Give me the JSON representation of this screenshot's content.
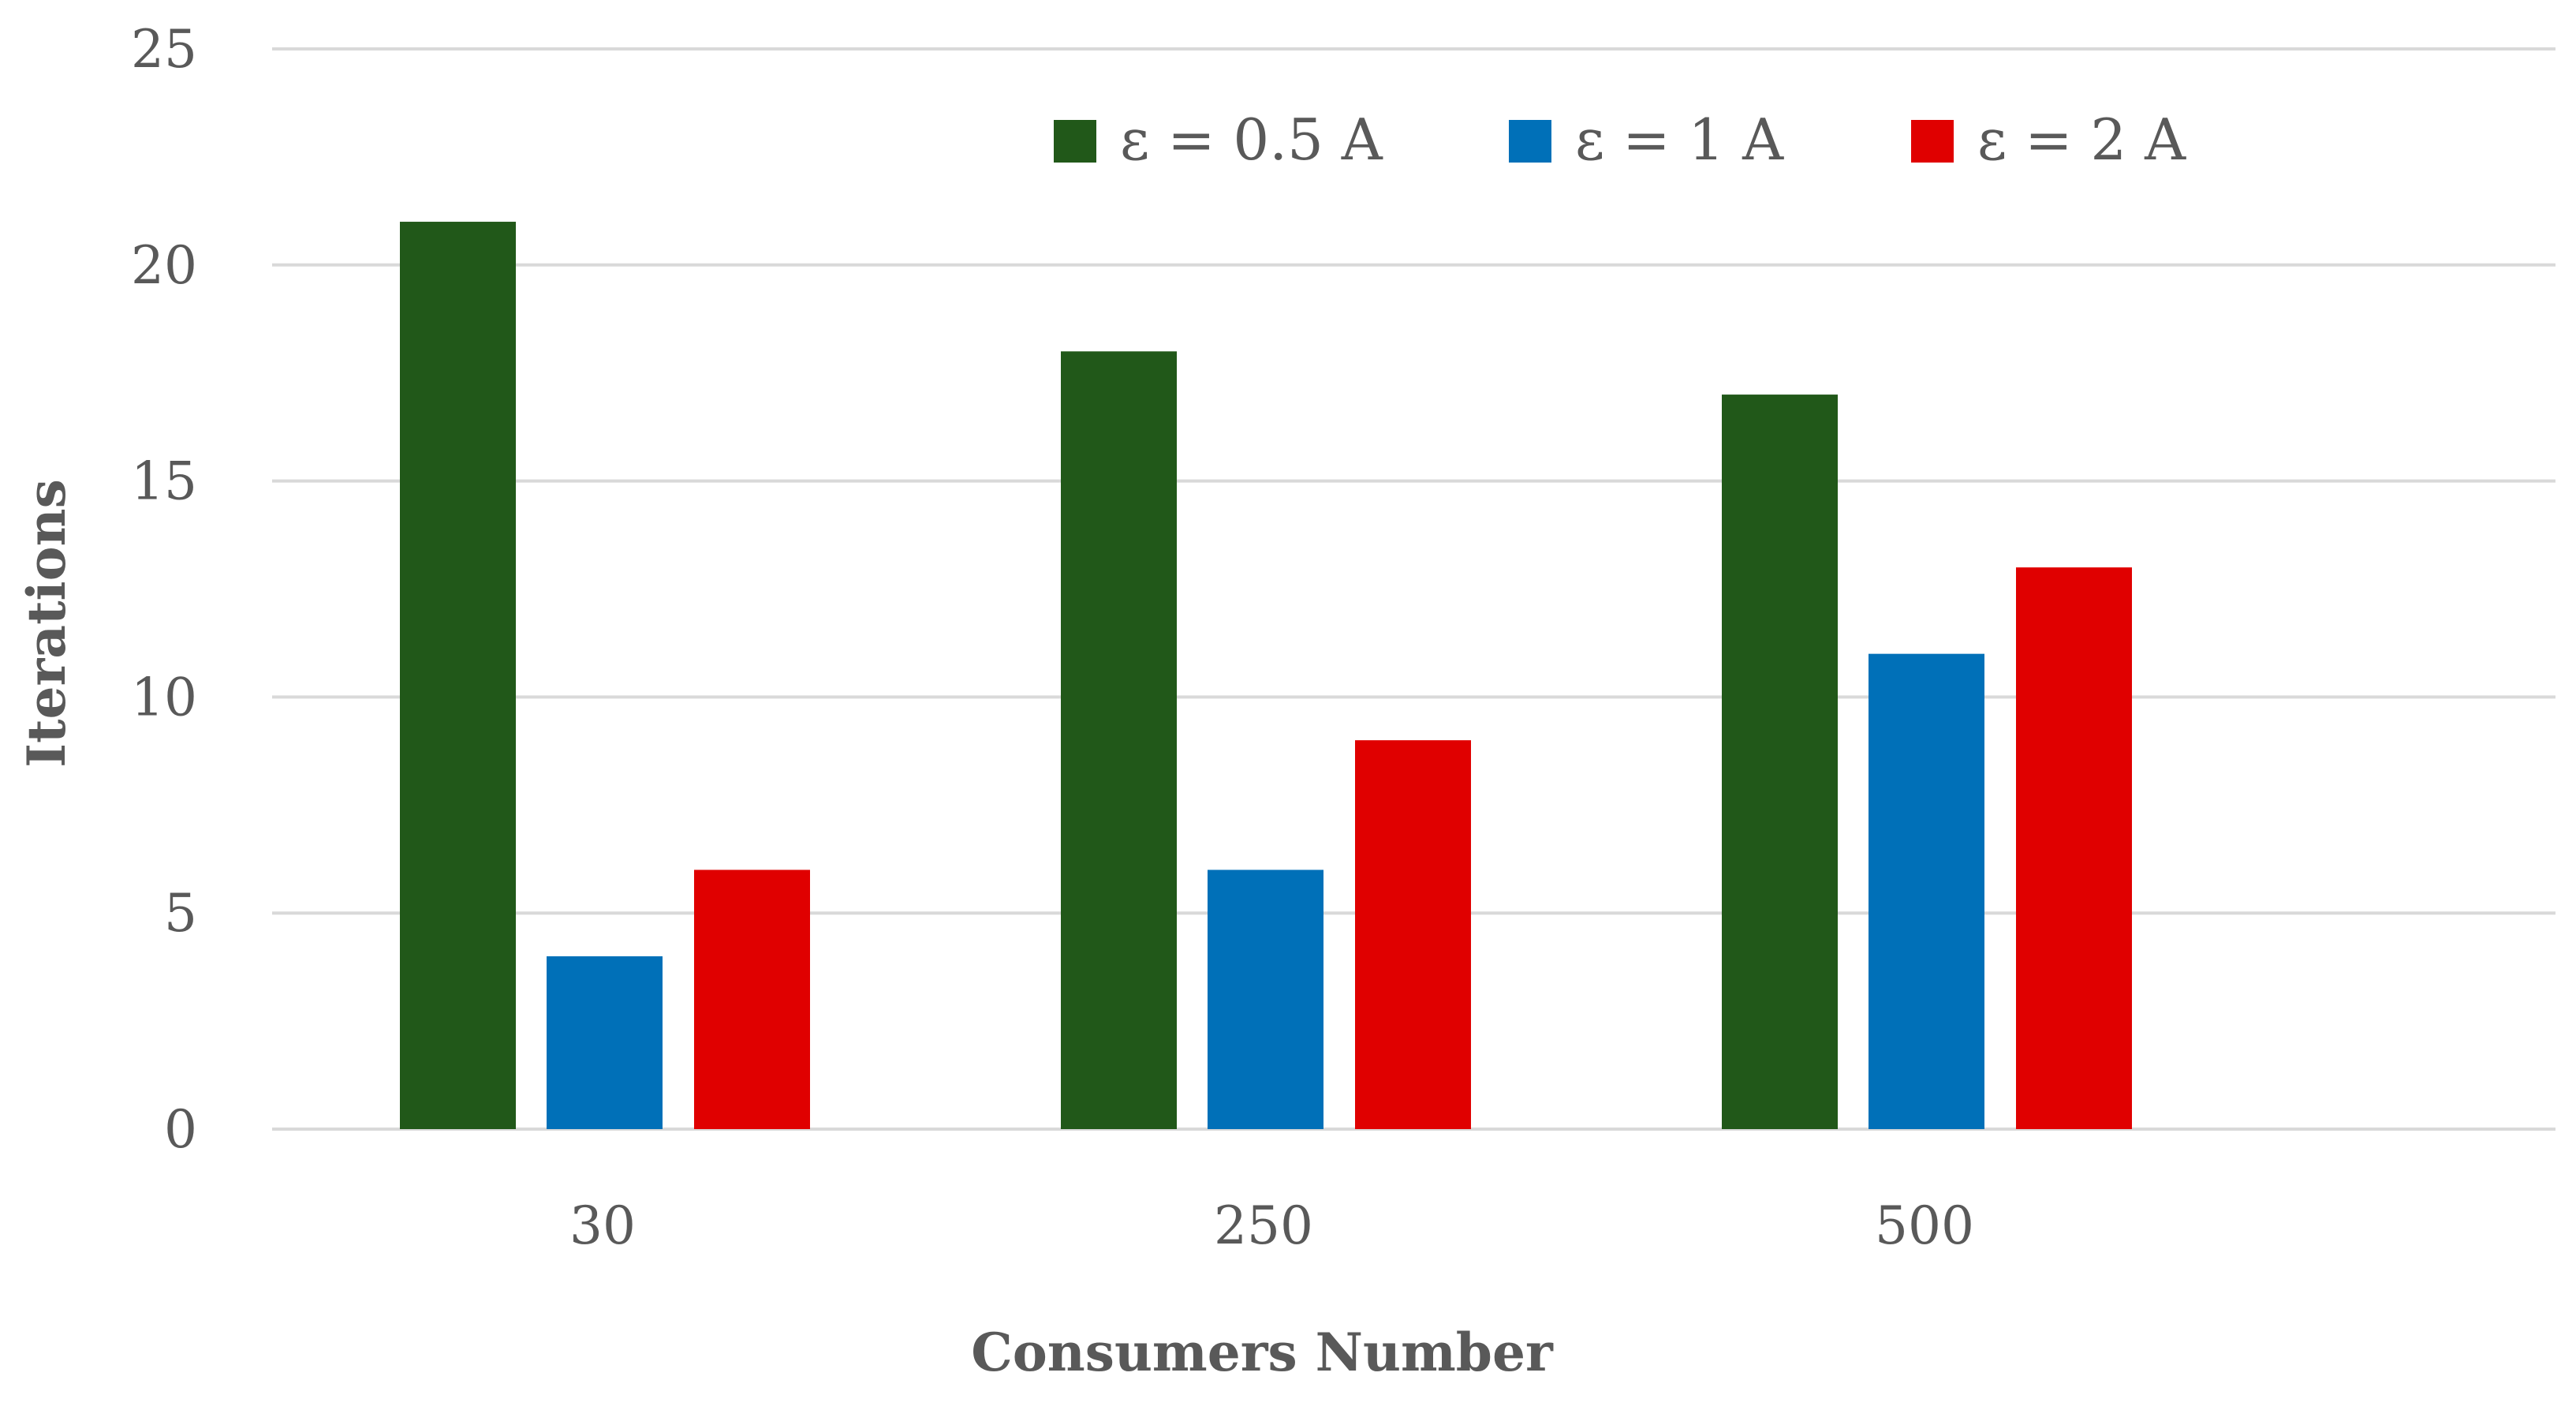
{
  "chart_data": {
    "type": "bar",
    "title": "",
    "xlabel": "Consumers Number",
    "ylabel": "Iterations",
    "categories": [
      "30",
      "250",
      "500"
    ],
    "series": [
      {
        "name": "ε = 0.5 A",
        "color": "#215819",
        "values": [
          21,
          18,
          17
        ]
      },
      {
        "name": "ε = 1 A",
        "color": "#0070b8",
        "values": [
          4,
          6,
          11
        ]
      },
      {
        "name": "ε = 2 A",
        "color": "#e00000",
        "values": [
          6,
          9,
          13
        ]
      }
    ],
    "ylim": [
      0,
      25
    ],
    "yticks": [
      0,
      5,
      10,
      15,
      20,
      25
    ],
    "grid": true,
    "legend_position": "top-center"
  }
}
